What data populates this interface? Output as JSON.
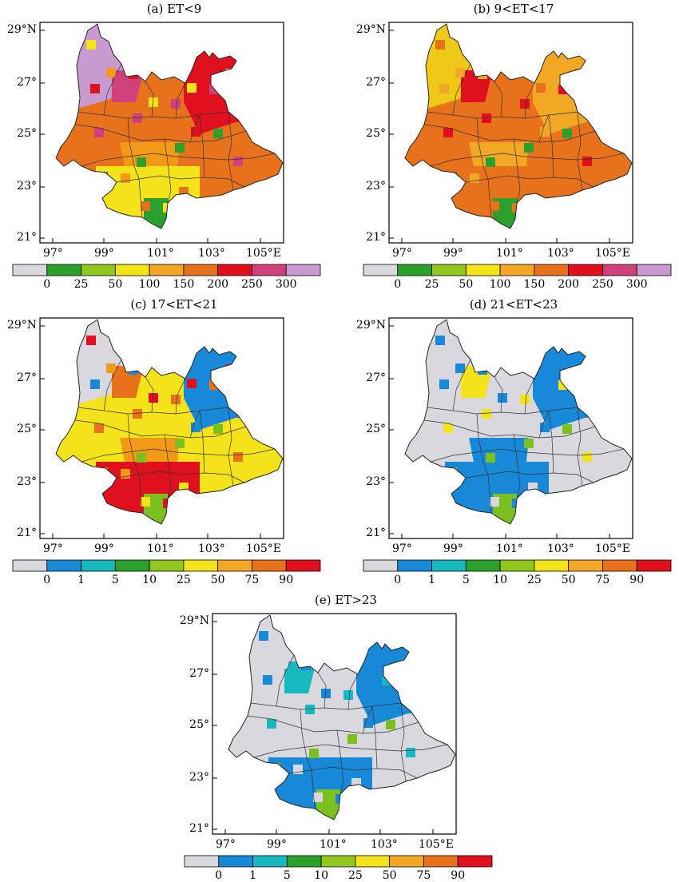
{
  "panels": [
    {
      "id": "a",
      "title": "(a) ET<9",
      "legend": "legend1",
      "colors": {
        "main": "#e8721c",
        "north": "#c89ad0",
        "mid": "#f29a18",
        "south": "#f4e21a",
        "east": "#e0101e",
        "accent": "#d0407a",
        "green": "#2ca02c"
      }
    },
    {
      "id": "b",
      "title": "(b) 9<ET<17",
      "legend": "legend1",
      "colors": {
        "main": "#e8721c",
        "north": "#f0c818",
        "mid": "#f2a824",
        "south": "#e8721c",
        "east": "#f2a824",
        "accent": "#e0101e",
        "green": "#2ca02c"
      }
    },
    {
      "id": "c",
      "title": "(c) 17<ET<21",
      "legend": "legend2",
      "colors": {
        "main": "#f4e21a",
        "north": "#d8d8de",
        "mid": "#f29a18",
        "south": "#e0101e",
        "east": "#1888d8",
        "accent": "#e8721c",
        "green": "#7cc020"
      }
    },
    {
      "id": "d",
      "title": "(d) 21<ET<23",
      "legend": "legend2",
      "colors": {
        "main": "#d8d8de",
        "north": "#d8d8de",
        "mid": "#1888d8",
        "south": "#1888d8",
        "east": "#1888d8",
        "accent": "#f4e21a",
        "green": "#7cc020"
      }
    },
    {
      "id": "e",
      "title": "(e) ET>23",
      "legend": "legend2",
      "colors": {
        "main": "#d8d8de",
        "north": "#d8d8de",
        "mid": "#d8d8de",
        "south": "#1888d8",
        "east": "#1888d8",
        "accent": "#18b8c0",
        "green": "#7cc020"
      }
    }
  ],
  "axes": {
    "x_ticks": [
      "97°",
      "99°",
      "101°",
      "103°",
      "105°E"
    ],
    "y_ticks": [
      "29°N",
      "27°",
      "25°",
      "23°",
      "21°"
    ]
  },
  "legend1": {
    "labels": [
      "0",
      "25",
      "50",
      "100",
      "150",
      "200",
      "250",
      "300"
    ],
    "colors": [
      "#d8d8de",
      "#2ca02c",
      "#90c820",
      "#f4e21a",
      "#f2a824",
      "#e8721c",
      "#e0101e",
      "#d0407a",
      "#c89ad0"
    ]
  },
  "legend2": {
    "labels": [
      "0",
      "1",
      "5",
      "10",
      "25",
      "50",
      "75",
      "90"
    ],
    "colors": [
      "#d8d8de",
      "#1888d8",
      "#18b8c0",
      "#2ca02c",
      "#90c820",
      "#f4e21a",
      "#f2a824",
      "#e8721c",
      "#e0101e"
    ]
  }
}
